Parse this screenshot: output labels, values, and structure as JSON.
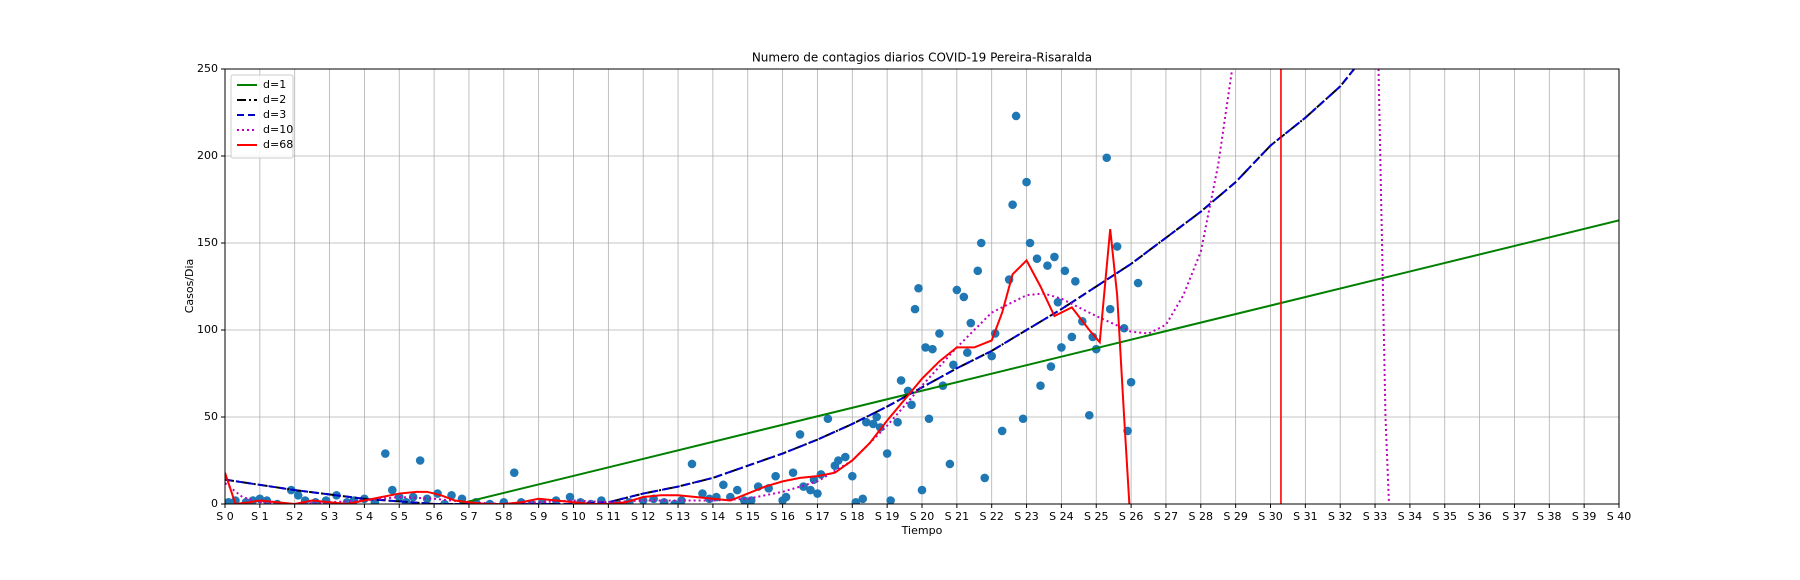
{
  "chart_data": {
    "type": "line",
    "title": "Numero de contagios diarios COVID-19 Pereira-Risaralda",
    "xlabel": "Tiempo",
    "ylabel": "Casos/Dia",
    "xlim": [
      0,
      40
    ],
    "ylim": [
      0,
      250
    ],
    "xticks": [
      {
        "value": 0,
        "label": "S 0"
      },
      {
        "value": 1,
        "label": "S 1"
      },
      {
        "value": 2,
        "label": "S 2"
      },
      {
        "value": 3,
        "label": "S 3"
      },
      {
        "value": 4,
        "label": "S 4"
      },
      {
        "value": 5,
        "label": "S 5"
      },
      {
        "value": 6,
        "label": "S 6"
      },
      {
        "value": 7,
        "label": "S 7"
      },
      {
        "value": 8,
        "label": "S 8"
      },
      {
        "value": 9,
        "label": "S 9"
      },
      {
        "value": 10,
        "label": "S 10"
      },
      {
        "value": 11,
        "label": "S 11"
      },
      {
        "value": 12,
        "label": "S 12"
      },
      {
        "value": 13,
        "label": "S 13"
      },
      {
        "value": 14,
        "label": "S 14"
      },
      {
        "value": 15,
        "label": "S 15"
      },
      {
        "value": 16,
        "label": "S 16"
      },
      {
        "value": 17,
        "label": "S 17"
      },
      {
        "value": 18,
        "label": "S 18"
      },
      {
        "value": 19,
        "label": "S 19"
      },
      {
        "value": 20,
        "label": "S 20"
      },
      {
        "value": 21,
        "label": "S 21"
      },
      {
        "value": 22,
        "label": "S 22"
      },
      {
        "value": 23,
        "label": "S 23"
      },
      {
        "value": 24,
        "label": "S 24"
      },
      {
        "value": 25,
        "label": "S 25"
      },
      {
        "value": 26,
        "label": "S 26"
      },
      {
        "value": 27,
        "label": "S 27"
      },
      {
        "value": 28,
        "label": "S 28"
      },
      {
        "value": 29,
        "label": "S 29"
      },
      {
        "value": 30,
        "label": "S 30"
      },
      {
        "value": 31,
        "label": "S 31"
      },
      {
        "value": 32,
        "label": "S 32"
      },
      {
        "value": 33,
        "label": "S 33"
      },
      {
        "value": 34,
        "label": "S 34"
      },
      {
        "value": 35,
        "label": "S 35"
      },
      {
        "value": 36,
        "label": "S 36"
      },
      {
        "value": 37,
        "label": "S 37"
      },
      {
        "value": 38,
        "label": "S 38"
      },
      {
        "value": 39,
        "label": "S 39"
      },
      {
        "value": 40,
        "label": "S 40"
      }
    ],
    "yticks": [
      0,
      50,
      100,
      150,
      200,
      250
    ],
    "grid": true,
    "legend": "upper-left",
    "vlines": [
      {
        "x": 30.3,
        "color": "#ff0000"
      }
    ],
    "series": [
      {
        "type": "scatter",
        "color": "#1f77b4",
        "x": [
          0.1,
          0.3,
          0.6,
          0.8,
          1.0,
          1.2,
          1.5,
          1.9,
          2.1,
          2.3,
          2.6,
          2.9,
          3.2,
          3.5,
          3.7,
          4.0,
          4.3,
          4.6,
          4.8,
          5.0,
          5.2,
          5.4,
          5.6,
          5.8,
          6.1,
          6.3,
          6.5,
          6.8,
          7.2,
          7.6,
          8.0,
          8.3,
          8.5,
          8.8,
          9.1,
          9.5,
          9.9,
          10.2,
          10.5,
          10.8,
          11.2,
          11.6,
          12.0,
          12.3,
          12.6,
          12.9,
          13.1,
          13.4,
          13.7,
          13.9,
          14.1,
          14.3,
          14.5,
          14.7,
          14.9,
          15.1,
          15.3,
          15.6,
          15.8,
          16.0,
          16.1,
          16.3,
          16.5,
          16.6,
          16.8,
          16.9,
          17.0,
          17.1,
          17.3,
          17.5,
          17.6,
          17.8,
          18.0,
          18.1,
          18.3,
          18.4,
          18.6,
          18.7,
          18.8,
          19.0,
          19.1,
          19.3,
          19.4,
          19.6,
          19.7,
          19.8,
          19.9,
          20.0,
          20.1,
          20.2,
          20.3,
          20.5,
          20.6,
          20.8,
          20.9,
          21.0,
          21.2,
          21.3,
          21.4,
          21.6,
          21.7,
          21.8,
          22.0,
          22.1,
          22.3,
          22.5,
          22.6,
          22.7,
          22.9,
          23.0,
          23.1,
          23.3,
          23.4,
          23.6,
          23.7,
          23.8,
          23.9,
          24.0,
          24.1,
          24.3,
          24.4,
          24.6,
          24.8,
          24.9,
          25.0,
          25.3,
          25.4,
          25.6,
          25.8,
          25.9,
          26.0,
          26.2
        ],
        "values": [
          1,
          2,
          1,
          2,
          3,
          2,
          0,
          8,
          5,
          2,
          1,
          2,
          5,
          1,
          2,
          3,
          1,
          29,
          8,
          4,
          1,
          4,
          25,
          3,
          6,
          0,
          5,
          3,
          1,
          0,
          1,
          18,
          1,
          0,
          1,
          2,
          4,
          1,
          0,
          2,
          0,
          1,
          2,
          3,
          1,
          0,
          2,
          23,
          6,
          3,
          4,
          11,
          4,
          8,
          2,
          2,
          10,
          9,
          16,
          2,
          4,
          18,
          40,
          10,
          8,
          14,
          6,
          17,
          49,
          22,
          25,
          27,
          16,
          1,
          3,
          47,
          46,
          50,
          44,
          29,
          2,
          47,
          71,
          65,
          57,
          112,
          124,
          8,
          90,
          49,
          89,
          98,
          68,
          23,
          80,
          123,
          119,
          87,
          104,
          134,
          150,
          15,
          85,
          98,
          42,
          129,
          172,
          223,
          49,
          185,
          150,
          141,
          68,
          137,
          79,
          142,
          116,
          90,
          134,
          96,
          128,
          105,
          51,
          96,
          89,
          199,
          112,
          148,
          101,
          42,
          70,
          127
        ]
      },
      {
        "type": "line",
        "name": "d=1",
        "color": "#008000",
        "style": "solid",
        "x": [
          6.7,
          40
        ],
        "values": [
          0,
          163
        ]
      },
      {
        "type": "line",
        "name": "d=2",
        "color": "#000000",
        "style": "dashdot",
        "x": [
          0,
          2,
          4,
          6,
          8,
          10,
          11,
          12,
          13,
          14,
          15,
          16,
          17,
          18,
          19,
          20,
          21,
          22,
          23,
          24,
          25,
          26,
          27,
          28,
          29,
          30,
          31,
          32,
          32.4
        ],
        "values": [
          14,
          8,
          3,
          0,
          0,
          0,
          1,
          6,
          10,
          15,
          22,
          29,
          37,
          46,
          56,
          67,
          78,
          88,
          100,
          112,
          125,
          138,
          153,
          168,
          185,
          206,
          222,
          240,
          250
        ]
      },
      {
        "type": "line",
        "name": "d=3",
        "color": "#0000cc",
        "style": "dashed",
        "x": [
          0,
          2,
          4,
          6,
          8,
          10,
          11,
          12,
          13,
          14,
          15,
          16,
          17,
          18,
          19,
          20,
          21,
          22,
          23,
          24,
          25,
          26,
          27,
          28,
          29,
          30,
          31,
          32,
          32.4
        ],
        "values": [
          14,
          8,
          3,
          0,
          0,
          0,
          1,
          6,
          10,
          15,
          22,
          29,
          37,
          46,
          56,
          67,
          78,
          88,
          100,
          112,
          125,
          138,
          153,
          168,
          185,
          206,
          222,
          240,
          250
        ]
      },
      {
        "type": "line",
        "name": "d=10",
        "color": "#bf00bf",
        "style": "dotted",
        "x": [
          0,
          0.5,
          1,
          2,
          3,
          4,
          5,
          6,
          7,
          8,
          9,
          10,
          11,
          12,
          13,
          14,
          15,
          16,
          17,
          18,
          19,
          20,
          21,
          22,
          23,
          23.5,
          24,
          25,
          26,
          26.5,
          27,
          27.5,
          28,
          28.5,
          28.9,
          31,
          33.1,
          33.2,
          33.3,
          33.4
        ],
        "values": [
          12,
          4,
          1,
          0,
          1,
          2,
          4,
          3,
          1,
          0,
          1,
          2,
          1,
          2,
          2,
          2,
          3,
          7,
          13,
          25,
          45,
          68,
          90,
          110,
          120,
          121,
          118,
          108,
          99,
          98,
          103,
          120,
          145,
          195,
          250,
          null,
          250,
          150,
          50,
          0
        ]
      },
      {
        "type": "line",
        "name": "d=68",
        "color": "#ff0000",
        "style": "solid",
        "x": [
          0,
          0.3,
          0.7,
          1,
          1.5,
          2,
          2.5,
          3,
          3.5,
          4,
          4.5,
          5,
          5.5,
          5.8,
          6.2,
          6.6,
          7,
          7.5,
          8,
          8.5,
          9,
          9.5,
          10,
          10.5,
          11,
          11.5,
          12,
          12.5,
          13,
          13.5,
          14,
          14.5,
          15,
          15.5,
          16,
          16.5,
          17,
          17.5,
          18,
          18.5,
          19,
          19.5,
          20,
          20.5,
          21,
          21.5,
          22,
          22.3,
          22.6,
          23,
          23.4,
          23.8,
          24.3,
          24.8,
          25.1,
          25.4,
          25.6,
          25.8,
          25.95
        ],
        "values": [
          18,
          0,
          1,
          2,
          1,
          0,
          2,
          1,
          0,
          2,
          4,
          6,
          7,
          7,
          5,
          2,
          1,
          0,
          0,
          1,
          3,
          2,
          1,
          0,
          0,
          1,
          4,
          5,
          5,
          4,
          3,
          2,
          6,
          10,
          13,
          15,
          16,
          18,
          25,
          35,
          48,
          60,
          72,
          82,
          90,
          90,
          94,
          110,
          132,
          140,
          125,
          108,
          113,
          100,
          93,
          158,
          120,
          50,
          0
        ]
      }
    ]
  }
}
